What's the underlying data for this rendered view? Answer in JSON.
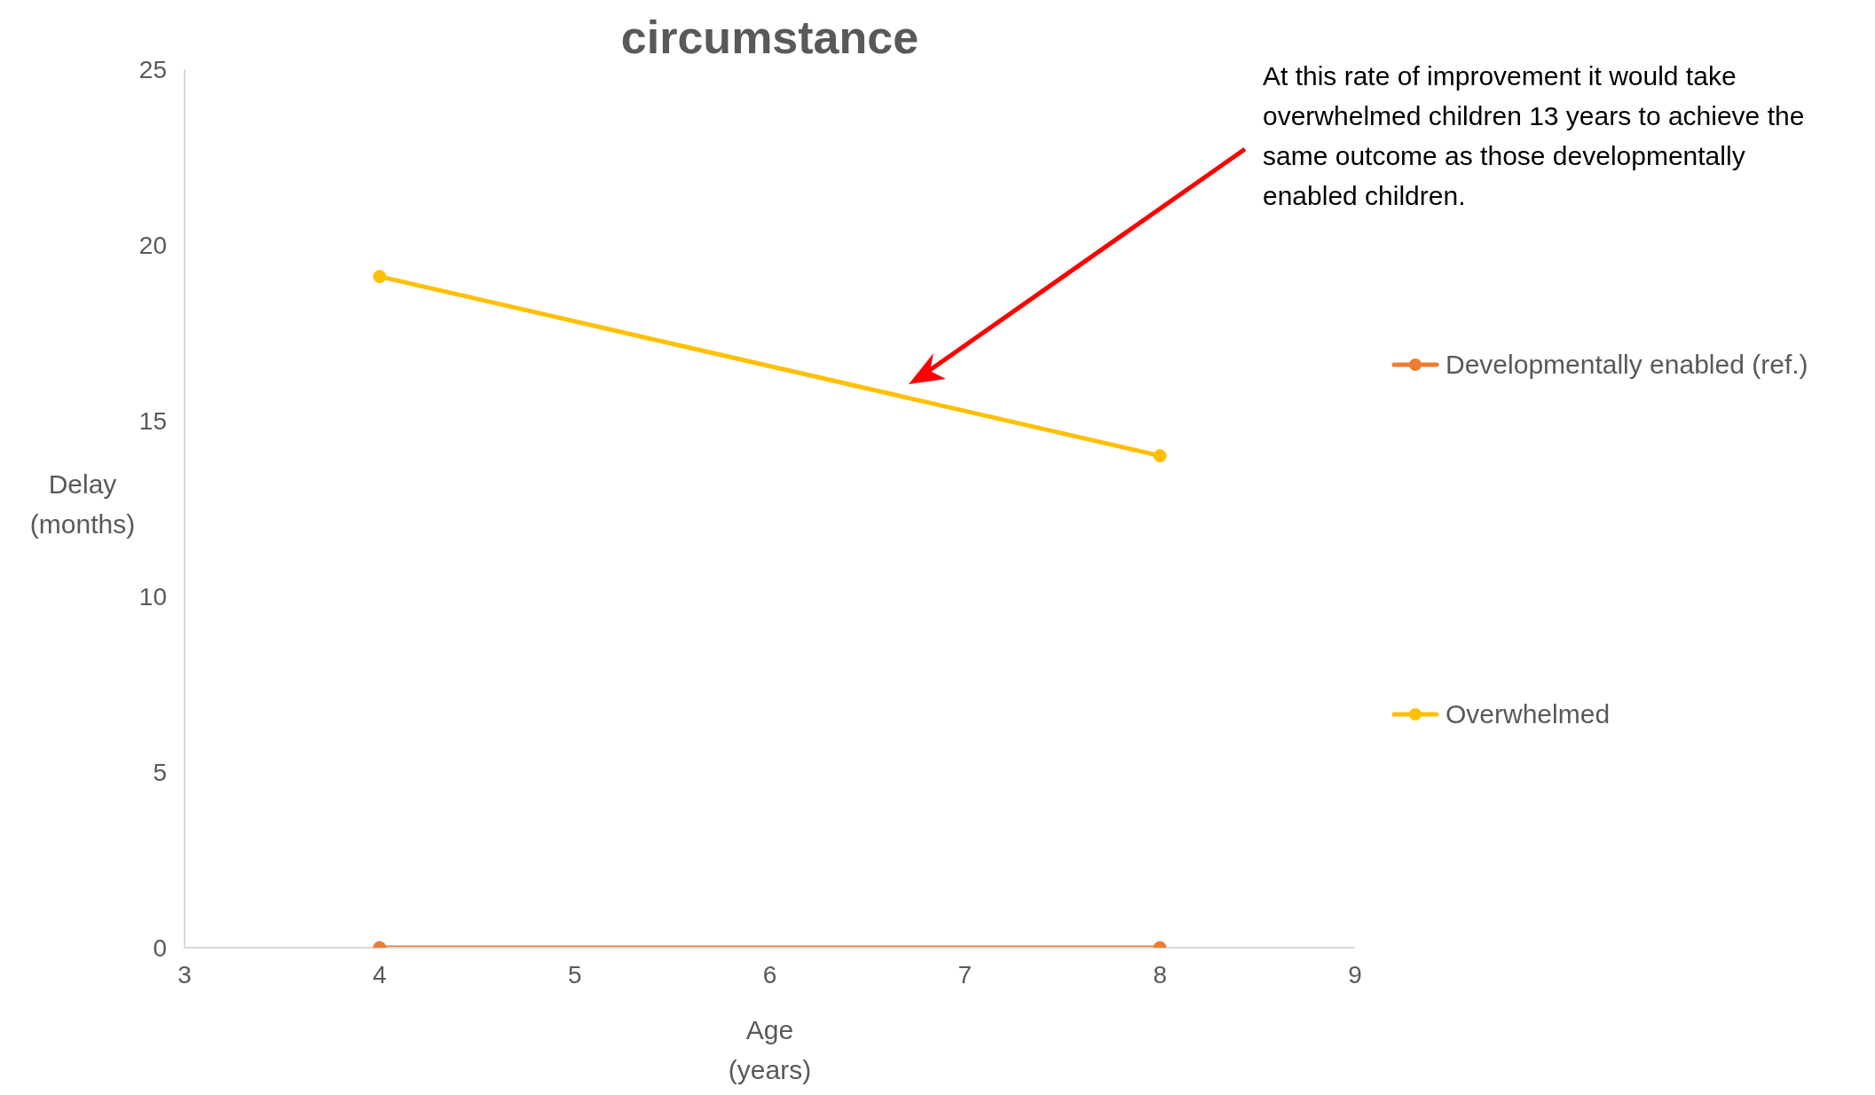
{
  "chart_data": {
    "type": "line",
    "title": "circumstance",
    "xlabel": "Age\n(years)",
    "ylabel": "Delay\n(months)",
    "x": [
      4,
      8
    ],
    "series": [
      {
        "name": "Developmentally enabled (ref.)",
        "color": "#ed7d31",
        "values": [
          0,
          0
        ]
      },
      {
        "name": "Overwhelmed",
        "color": "#ffc000",
        "values": [
          19.1,
          14
        ]
      }
    ],
    "xlim": [
      3,
      9
    ],
    "xticks": [
      3,
      4,
      5,
      6,
      7,
      8,
      9
    ],
    "ylim": [
      0,
      25
    ],
    "yticks": [
      0,
      5,
      10,
      15,
      20,
      25
    ],
    "grid": false,
    "legend": "right",
    "marker": "circle",
    "line_style": "solid",
    "annotations": [
      "At this rate of improvement it would take overwhelmed children 13 years to achieve the same outcome as those developmentally enabled children."
    ]
  }
}
